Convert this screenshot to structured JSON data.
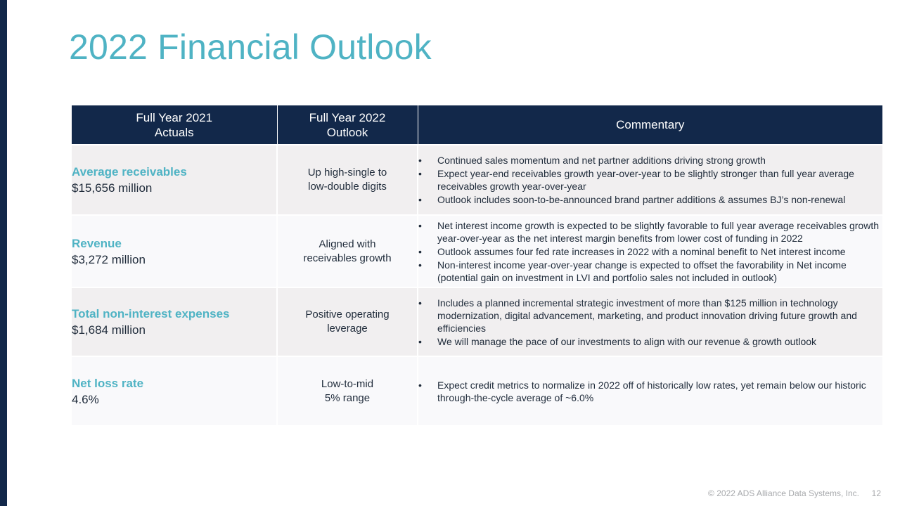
{
  "title": "2022 Financial Outlook",
  "table": {
    "headers": [
      "Full Year 2021\nActuals",
      "Full Year 2022\nOutlook",
      "Commentary"
    ],
    "rows": [
      {
        "metric": "Average receivables",
        "value": "$15,656 million",
        "outlook": "Up high-single to\nlow-double digits",
        "commentary": [
          "Continued sales momentum and net partner additions driving strong growth",
          "Expect year-end receivables growth year-over-year to be slightly stronger than full year average receivables growth year-over-year",
          "Outlook includes soon-to-be-announced brand partner additions & assumes BJ’s non-renewal"
        ]
      },
      {
        "metric": "Revenue",
        "value": "$3,272 million",
        "outlook": "Aligned with\nreceivables growth",
        "commentary": [
          "Net interest income growth is expected to be slightly favorable to full year average receivables growth year-over-year as the net interest margin benefits from lower cost of funding in 2022",
          "Outlook assumes four fed rate increases in 2022 with a nominal benefit to Net interest income",
          "Non-interest income year-over-year change is expected to offset the favorability in Net income (potential gain on investment in LVI and portfolio sales not included in outlook)"
        ]
      },
      {
        "metric": "Total non-interest expenses",
        "value": "$1,684 million",
        "outlook": "Positive operating\nleverage",
        "commentary": [
          "Includes a planned incremental strategic investment of more than $125 million in technology modernization, digital advancement, marketing, and product innovation driving future growth and efficiencies",
          "We will manage the pace of our investments to align with our revenue & growth outlook"
        ]
      },
      {
        "metric": "Net loss rate",
        "value": "4.6%",
        "outlook": "Low-to-mid\n5% range",
        "commentary": [
          "Expect credit metrics to normalize in 2022 off of historically low rates, yet remain below our historic through-the-cycle average of ~6.0%"
        ]
      }
    ]
  },
  "footer": {
    "copyright": "© 2022 ADS Alliance Data Systems, Inc.",
    "page_number": "12"
  },
  "colors": {
    "navy": "#12284a",
    "teal": "#4fb3c4"
  }
}
